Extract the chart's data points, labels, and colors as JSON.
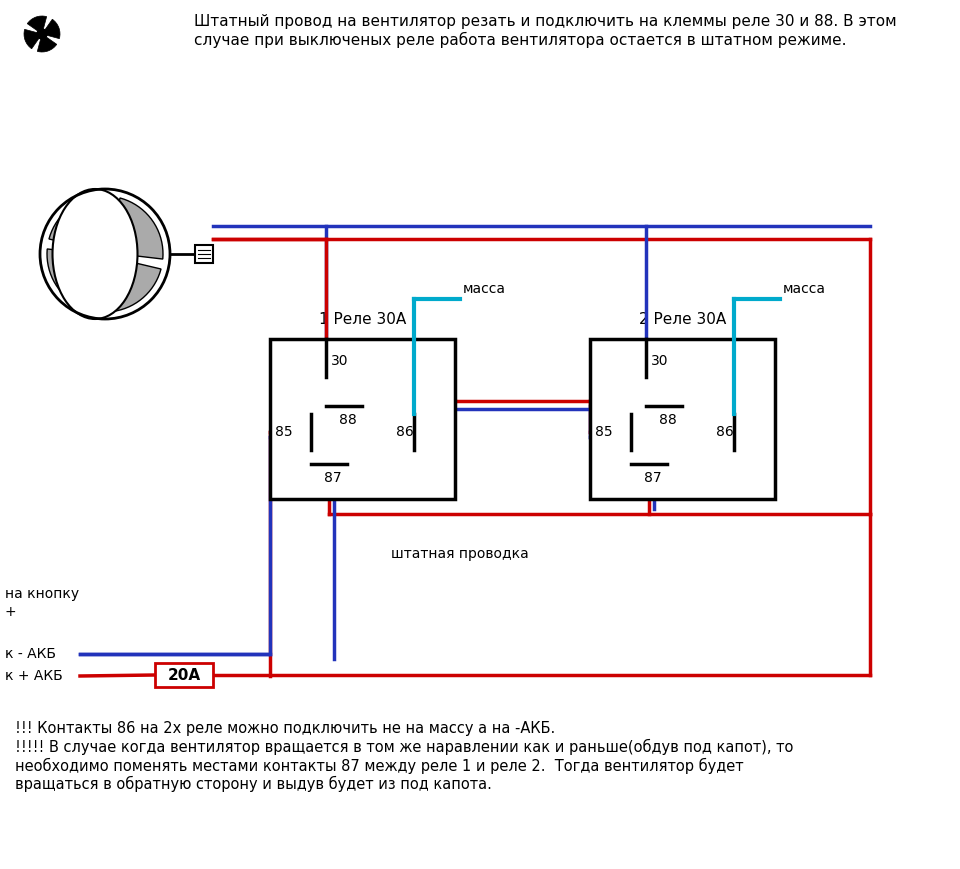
{
  "bg_color": "#ffffff",
  "title_text": "Штатный провод на вентилятор резать и подключить на клеммы реле 30 и 88. В этом\nслучае при выключеных реле работа вентилятора остается в штатном режиме.",
  "relay1_label": "1 Реле 30А",
  "relay2_label": "2 Реле 30А",
  "footer_text": "!!! Контакты 86 на 2х реле можно подключить не на массу а на -АКБ.\n!!!!! В случае когда вентилятор вращается в том же наравлении как и раньше(обдув под капот), то\nнеобходимо поменять местами контакты 87 между реле 1 и реле 2.  Тогда вентилятор будет\nвращаться в обратную сторону и выдув будет из под капота.",
  "red": "#cc0000",
  "blue": "#2233bb",
  "cyan": "#00aacc",
  "black": "#000000",
  "lw": 2.5
}
